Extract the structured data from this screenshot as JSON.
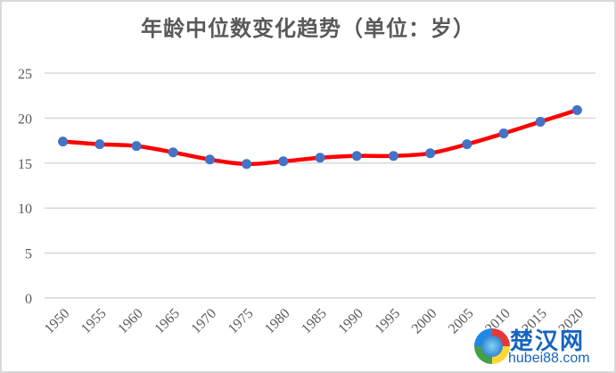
{
  "chart_data": {
    "type": "line",
    "title": "年龄中位数变化趋势（单位：岁）",
    "xlabel": "",
    "ylabel": "",
    "categories": [
      "1950",
      "1955",
      "1960",
      "1965",
      "1970",
      "1975",
      "1980",
      "1985",
      "1990",
      "1995",
      "2000",
      "2005",
      "2010",
      "2015",
      "2020"
    ],
    "series": [
      {
        "name": "年龄中位数",
        "values": [
          17.4,
          17.1,
          16.9,
          16.2,
          15.4,
          14.9,
          15.2,
          15.6,
          15.8,
          15.8,
          16.1,
          17.1,
          18.3,
          19.6,
          20.9
        ],
        "line_color": "#ff0000",
        "marker_color": "#4472c4",
        "smooth": true
      }
    ],
    "ylim": [
      0,
      25
    ],
    "yticks": [
      "0",
      "5",
      "10",
      "15",
      "20",
      "25"
    ],
    "grid": true,
    "legend": null
  },
  "watermark": {
    "name": "楚汉网",
    "url": "hubei88.com"
  }
}
